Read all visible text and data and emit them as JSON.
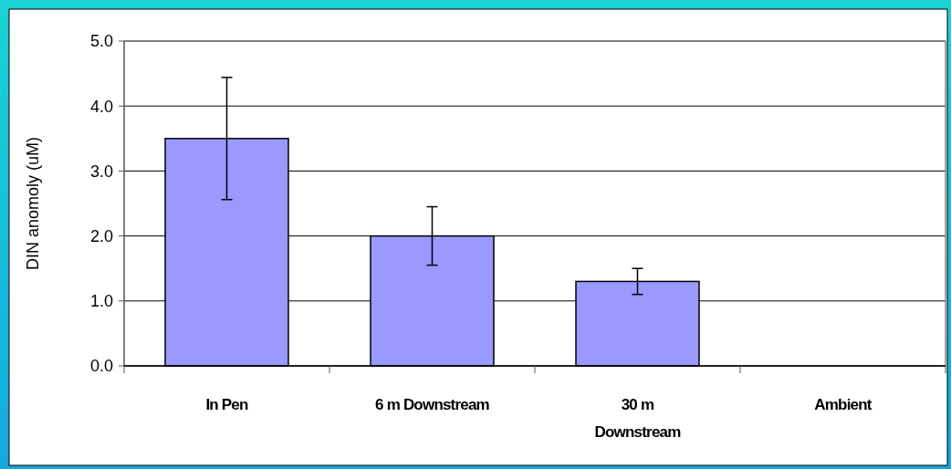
{
  "chart_data": {
    "type": "bar",
    "ylabel": "DIN anomoly (uM)",
    "categories": [
      "In Pen",
      "6 m Downstream",
      "30 m Downstream",
      "Ambient"
    ],
    "values": [
      3.5,
      2.0,
      1.3,
      0
    ],
    "errors": [
      0.94,
      0.45,
      0.2,
      null
    ],
    "color": "#9999ff",
    "ylim": [
      0,
      5
    ],
    "yticks": [
      {
        "value": 0,
        "label": "0.0"
      },
      {
        "value": 1,
        "label": "1.0"
      },
      {
        "value": 2,
        "label": "2.0"
      },
      {
        "value": 3,
        "label": "3.0"
      },
      {
        "value": 4,
        "label": "4.0"
      },
      {
        "value": 5,
        "label": "5.0"
      }
    ],
    "grid": "y"
  }
}
